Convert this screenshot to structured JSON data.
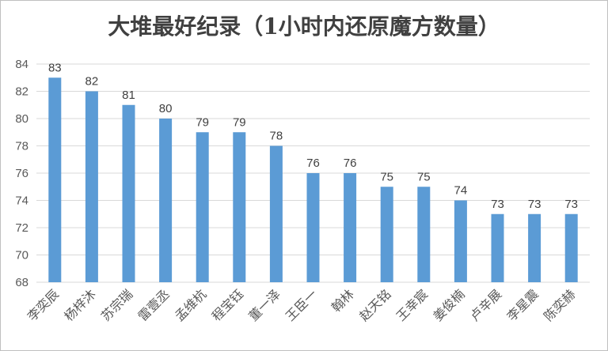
{
  "chart_data": {
    "type": "bar",
    "title": "大堆最好纪录（1小时内还原魔方数量）",
    "categories": [
      "李奕辰",
      "杨梓沐",
      "苏宗瑞",
      "雷壹丞",
      "孟维杭",
      "程宝钰",
      "董一泽",
      "王臣一",
      "翰林",
      "赵天铭",
      "王幸宸",
      "姜俊楠",
      "卢辛展",
      "李星震",
      "陈奕赫"
    ],
    "values": [
      83,
      82,
      81,
      80,
      79,
      79,
      78,
      76,
      76,
      75,
      75,
      74,
      73,
      73,
      73
    ],
    "ylim": [
      68,
      84
    ],
    "yticks": [
      68,
      70,
      72,
      74,
      76,
      78,
      80,
      82,
      84
    ],
    "grid": true,
    "bar_color": "#5b9bd5",
    "xlabel": "",
    "ylabel": ""
  }
}
